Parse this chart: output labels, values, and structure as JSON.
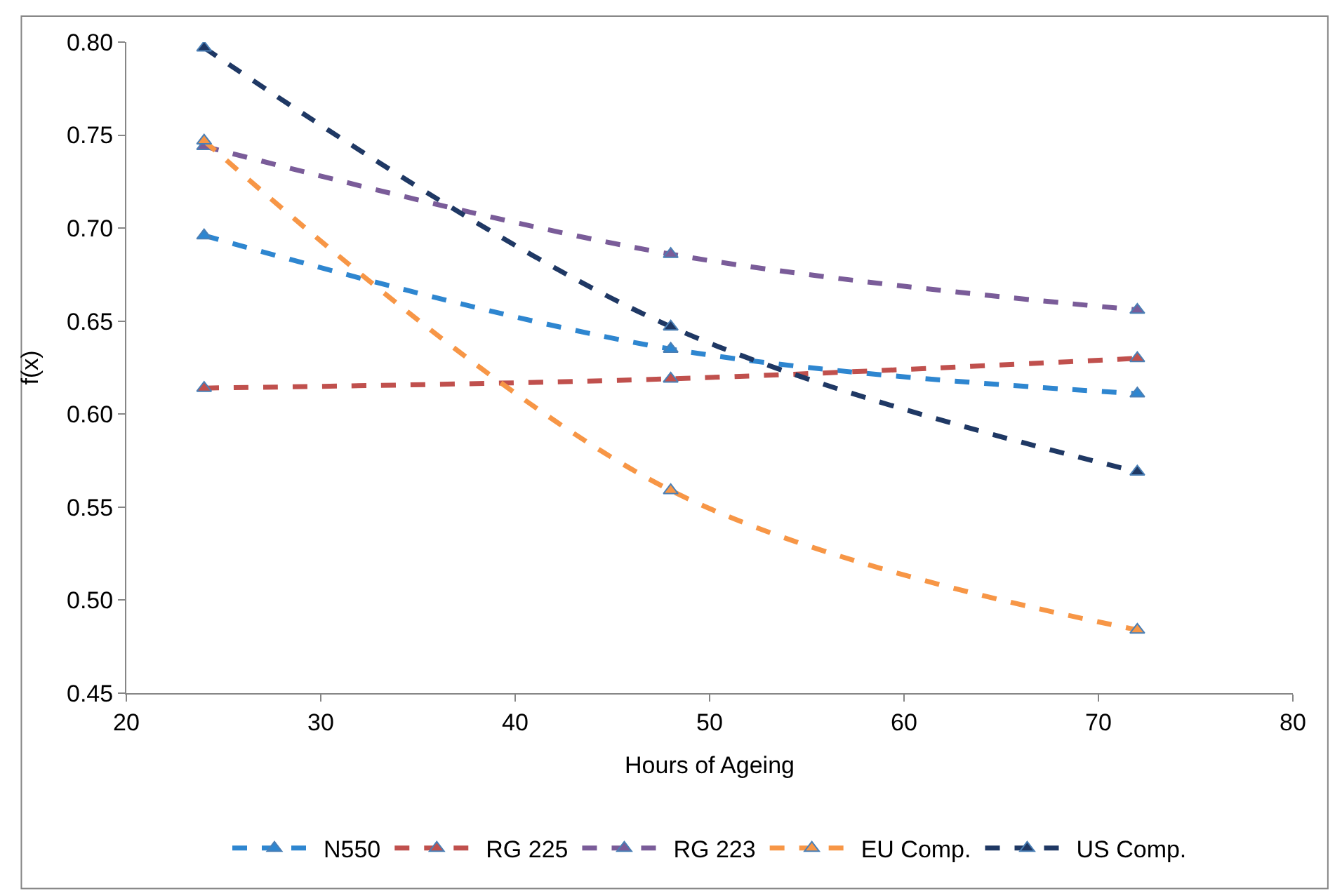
{
  "chart_data": {
    "type": "line",
    "xlabel": "Hours of Ageing",
    "ylabel": "f(x)",
    "x": [
      24,
      48,
      72
    ],
    "series": [
      {
        "name": "N550",
        "color": "#2e86d0",
        "values": [
          0.696,
          0.635,
          0.611
        ]
      },
      {
        "name": "RG 225",
        "color": "#c0504d",
        "values": [
          0.614,
          0.619,
          0.63
        ]
      },
      {
        "name": "RG 223",
        "color": "#7a5c99",
        "values": [
          0.744,
          0.686,
          0.656
        ]
      },
      {
        "name": "EU Comp.",
        "color": "#f79646",
        "values": [
          0.747,
          0.559,
          0.484
        ]
      },
      {
        "name": "US Comp.",
        "color": "#1f3864",
        "values": [
          0.797,
          0.647,
          0.569
        ]
      }
    ],
    "xlim": [
      20,
      80
    ],
    "xticks": [
      20,
      30,
      40,
      50,
      60,
      70,
      80
    ],
    "ylim": [
      0.45,
      0.8
    ],
    "yticks": [
      {
        "value": 0.45,
        "label": "0.45"
      },
      {
        "value": 0.5,
        "label": "0.50"
      },
      {
        "value": 0.55,
        "label": "0.55"
      },
      {
        "value": 0.6,
        "label": "0.60"
      },
      {
        "value": 0.65,
        "label": "0.65"
      },
      {
        "value": 0.7,
        "label": "0.70"
      },
      {
        "value": 0.75,
        "label": "0.75"
      },
      {
        "value": 0.8,
        "label": "0.80"
      }
    ],
    "legend": "bottom",
    "marker": "triangle",
    "line_style": "dashed"
  }
}
